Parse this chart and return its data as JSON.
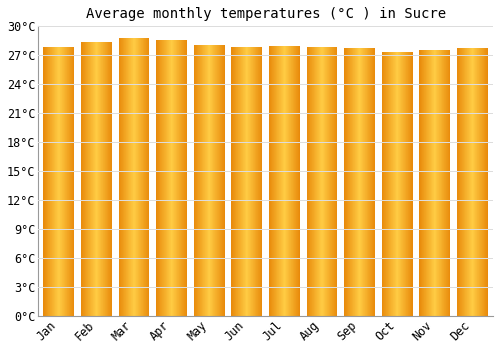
{
  "title": "Average monthly temperatures (°C ) in Sucre",
  "months": [
    "Jan",
    "Feb",
    "Mar",
    "Apr",
    "May",
    "Jun",
    "Jul",
    "Aug",
    "Sep",
    "Oct",
    "Nov",
    "Dec"
  ],
  "values": [
    27.9,
    28.4,
    28.8,
    28.6,
    28.1,
    27.9,
    28.0,
    27.9,
    27.7,
    27.3,
    27.5,
    27.7
  ],
  "ylim": [
    0,
    30
  ],
  "yticks": [
    0,
    3,
    6,
    9,
    12,
    15,
    18,
    21,
    24,
    27,
    30
  ],
  "bar_color_left": "#E8890A",
  "bar_color_center": "#FFCC44",
  "bar_color_right": "#E8890A",
  "background_color": "#ffffff",
  "plot_bg_color": "#ffffff",
  "grid_color": "#dddddd",
  "title_fontsize": 10,
  "tick_fontsize": 8.5,
  "bar_width": 0.82
}
